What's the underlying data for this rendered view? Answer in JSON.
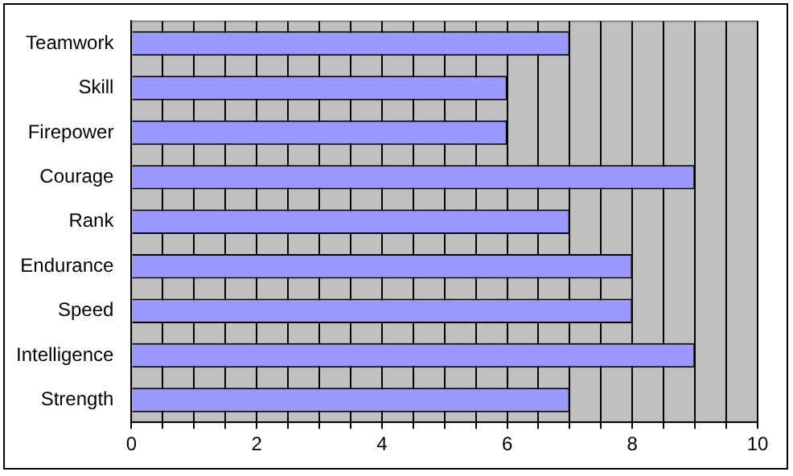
{
  "chart_data": {
    "type": "bar",
    "orientation": "horizontal",
    "categories": [
      "Teamwork",
      "Skill",
      "Firepower",
      "Courage",
      "Rank",
      "Endurance",
      "Speed",
      "Intelligence",
      "Strength"
    ],
    "values": [
      7,
      6,
      6,
      9,
      7,
      8,
      8,
      9,
      7
    ],
    "color": "#9999ff",
    "xlim": [
      0,
      10
    ],
    "xticks": [
      0,
      {
        "value": 0.5,
        "label": null
      },
      {
        "value": 1,
        "label": null
      },
      {
        "value": 1.5,
        "label": null
      },
      2,
      {
        "value": 2.5,
        "label": null
      },
      {
        "value": 3,
        "label": null
      },
      {
        "value": 3.5,
        "label": null
      },
      4,
      {
        "value": 4.5,
        "label": null
      },
      {
        "value": 5,
        "label": null
      },
      {
        "value": 5.5,
        "label": null
      },
      6,
      {
        "value": 6.5,
        "label": null
      },
      {
        "value": 7,
        "label": null
      },
      {
        "value": 7.5,
        "label": null
      },
      8,
      {
        "value": 8.5,
        "label": null
      },
      {
        "value": 9,
        "label": null
      },
      {
        "value": 9.5,
        "label": null
      },
      10
    ],
    "grid": "x",
    "legend": false
  }
}
